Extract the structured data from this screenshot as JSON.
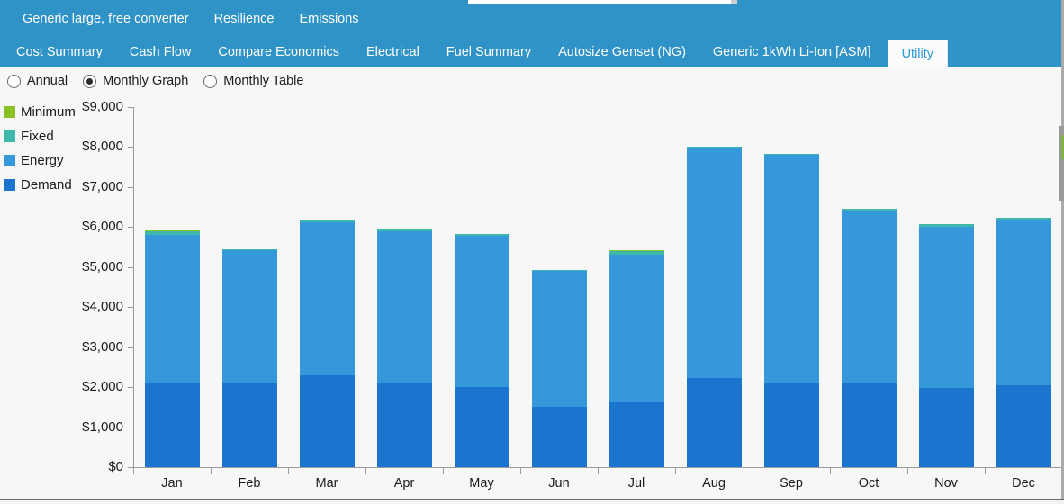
{
  "tab_bar": {
    "background_color": "#3093C8",
    "active_tab_color": "#2D9AD6",
    "row1": [
      {
        "label": "Generic large, free converter",
        "active": false
      },
      {
        "label": "Resilience",
        "active": false
      },
      {
        "label": "Emissions",
        "active": false
      }
    ],
    "row2": [
      {
        "label": "Cost Summary",
        "active": false
      },
      {
        "label": "Cash Flow",
        "active": false
      },
      {
        "label": "Compare Economics",
        "active": false
      },
      {
        "label": "Electrical",
        "active": false
      },
      {
        "label": "Fuel Summary",
        "active": false
      },
      {
        "label": "Autosize Genset (NG)",
        "active": false
      },
      {
        "label": "Generic 1kWh Li-Ion [ASM]",
        "active": false
      },
      {
        "label": "Utility",
        "active": true
      }
    ]
  },
  "view_options": {
    "options": [
      {
        "label": "Annual"
      },
      {
        "label": "Monthly Graph"
      },
      {
        "label": "Monthly Table"
      }
    ],
    "selected": "Monthly Graph"
  },
  "legend": {
    "items": [
      {
        "label": "Minimum",
        "color": "#8AC226"
      },
      {
        "label": "Fixed",
        "color": "#3FB8AC"
      },
      {
        "label": "Energy",
        "color": "#3498DB"
      },
      {
        "label": "Demand",
        "color": "#1B75CE"
      }
    ]
  },
  "chart_data": {
    "type": "bar",
    "stacked": true,
    "title": "",
    "xlabel": "",
    "ylabel": "",
    "currency_prefix": "$",
    "ylim": [
      0,
      9000
    ],
    "ytick_step": 1000,
    "grid": false,
    "legend_position": "top-left",
    "categories": [
      "Jan",
      "Feb",
      "Mar",
      "Apr",
      "May",
      "Jun",
      "Jul",
      "Aug",
      "Sep",
      "Oct",
      "Nov",
      "Dec"
    ],
    "series": [
      {
        "name": "Demand",
        "color": "#1B75CE",
        "values": [
          2110,
          2110,
          2300,
          2110,
          2000,
          1510,
          1620,
          2225,
          2110,
          2090,
          1980,
          2050
        ]
      },
      {
        "name": "Energy",
        "color": "#3498DB",
        "values": [
          3695,
          3305,
          3825,
          3795,
          3790,
          3390,
          3700,
          5740,
          5690,
          4315,
          4025,
          4125
        ]
      },
      {
        "name": "Fixed",
        "color": "#3FB8AC",
        "values": [
          90,
          35,
          45,
          40,
          40,
          35,
          90,
          40,
          40,
          55,
          65,
          55
        ]
      },
      {
        "name": "Minimum",
        "color": "#8AC226",
        "values": [
          20,
          0,
          0,
          0,
          0,
          0,
          20,
          0,
          0,
          0,
          0,
          0
        ]
      }
    ],
    "totals": [
      5915,
      5450,
      6170,
      5945,
      5830,
      4935,
      5430,
      8005,
      7840,
      6460,
      6070,
      6230
    ]
  }
}
